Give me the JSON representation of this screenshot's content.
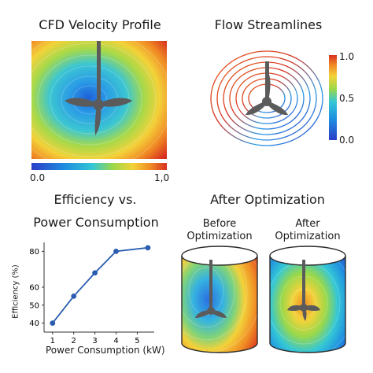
{
  "panels": {
    "velocity": {
      "title": "CFD Velocity Profile",
      "scale_min": "0.0",
      "scale_max": "1,0"
    },
    "streamlines": {
      "title": "Flow Streamlines",
      "scale_ticks": [
        "1.0",
        "0.5",
        "0.0"
      ]
    },
    "efficiency": {
      "title_line1": "Efficiency vs.",
      "title_line2": "Power Consumption"
    },
    "optimization": {
      "title": "After Optimization",
      "before_label_1": "Before",
      "before_label_2": "Optimization",
      "after_label_1": "After",
      "after_label_2": "Optimization"
    }
  },
  "colors": {
    "scale": [
      "#2b3cc8",
      "#1f8fe0",
      "#34c7d6",
      "#9ad84a",
      "#f3d23a",
      "#f08a24",
      "#d7301f"
    ],
    "impeller": "#5b5b5b",
    "line": "#2a5db0"
  },
  "chart_data": {
    "type": "line",
    "xlabel": "Power Consumption (kW)",
    "ylabel": "Efficiency (%)",
    "x": [
      1,
      2,
      3,
      4,
      5.5
    ],
    "y": [
      40,
      55,
      68,
      80,
      82
    ],
    "xticks": [
      "1",
      "2",
      "3",
      "4",
      "5"
    ],
    "yticks": [
      "40",
      "50",
      "60",
      "80"
    ],
    "xlim": [
      0.6,
      5.8
    ],
    "ylim": [
      35,
      85
    ]
  }
}
